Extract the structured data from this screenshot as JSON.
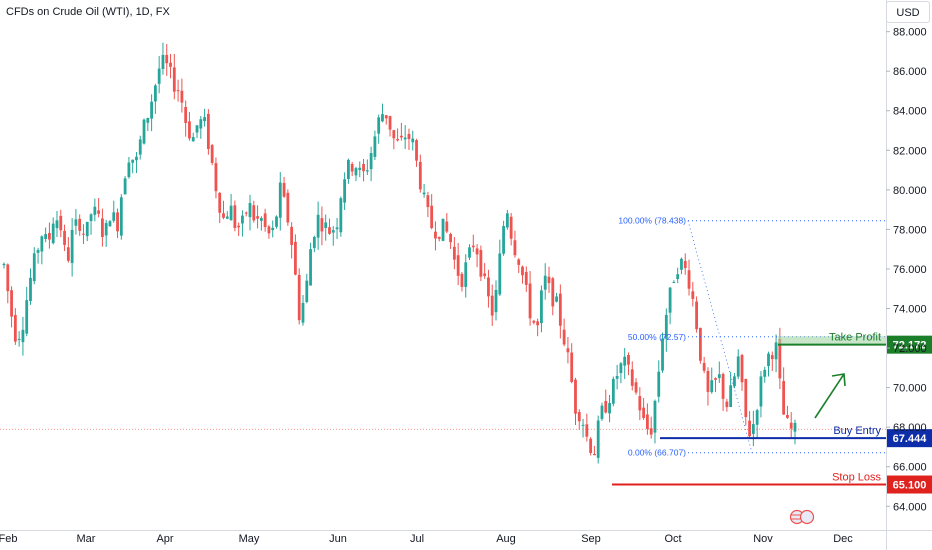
{
  "header": {
    "symbol_title": "CFDs on Crude Oil (WTI), 1D, FX",
    "currency": "USD"
  },
  "colors": {
    "up": "#26a69a",
    "down": "#ef5350",
    "take_profit": "#1b7f2a",
    "buy_entry": "#0d2ea8",
    "stop_loss": "#e0221f",
    "fib": "#2962ff",
    "grid": "#ffffff"
  },
  "chart_data": {
    "type": "candlestick",
    "ylim": [
      62.8,
      89.6
    ],
    "y_ticks": [
      "64.000",
      "66.000",
      "68.000",
      "70.000",
      "72.000",
      "74.000",
      "76.000",
      "78.000",
      "80.000",
      "82.000",
      "84.000",
      "86.000",
      "88.000"
    ],
    "x_ticks": [
      "Feb",
      "Mar",
      "Apr",
      "May",
      "Jun",
      "Jul",
      "Aug",
      "Sep",
      "Oct",
      "Nov",
      "Dec"
    ],
    "close_series": [
      [
        0,
        76.2
      ],
      [
        2,
        74.0
      ],
      [
        4,
        72.4
      ],
      [
        6,
        73.3
      ],
      [
        8,
        75.2
      ],
      [
        10,
        76.6
      ],
      [
        12,
        77.8
      ],
      [
        14,
        77.2
      ],
      [
        16,
        78.8
      ],
      [
        18,
        78.2
      ],
      [
        20,
        76.2
      ],
      [
        22,
        78.0
      ],
      [
        24,
        78.4
      ],
      [
        26,
        77.6
      ],
      [
        28,
        79.0
      ],
      [
        30,
        78.6
      ],
      [
        32,
        77.6
      ],
      [
        34,
        79.0
      ],
      [
        36,
        78.1
      ],
      [
        38,
        80.5
      ],
      [
        40,
        81.9
      ],
      [
        42,
        81.3
      ],
      [
        44,
        82.9
      ],
      [
        46,
        83.9
      ],
      [
        48,
        85.2
      ],
      [
        50,
        86.5
      ],
      [
        52,
        86.2
      ],
      [
        54,
        85.4
      ],
      [
        56,
        85.0
      ],
      [
        58,
        83.4
      ],
      [
        60,
        82.5
      ],
      [
        62,
        83.5
      ],
      [
        64,
        83.3
      ],
      [
        66,
        81.6
      ],
      [
        68,
        79.7
      ],
      [
        70,
        78.5
      ],
      [
        72,
        79.2
      ],
      [
        74,
        78.0
      ],
      [
        76,
        78.3
      ],
      [
        78,
        79.3
      ],
      [
        80,
        78.4
      ],
      [
        82,
        78.5
      ],
      [
        84,
        77.7
      ],
      [
        86,
        77.9
      ],
      [
        88,
        80.0
      ],
      [
        90,
        78.9
      ],
      [
        92,
        77.0
      ],
      [
        94,
        73.7
      ],
      [
        96,
        74.6
      ],
      [
        98,
        77.5
      ],
      [
        100,
        78.6
      ],
      [
        102,
        78.2
      ],
      [
        104,
        77.9
      ],
      [
        106,
        78.3
      ],
      [
        108,
        80.6
      ],
      [
        110,
        81.2
      ],
      [
        112,
        81.3
      ],
      [
        114,
        80.6
      ],
      [
        116,
        81.3
      ],
      [
        118,
        82.6
      ],
      [
        120,
        83.9
      ],
      [
        122,
        83.8
      ],
      [
        124,
        82.6
      ],
      [
        126,
        82.2
      ],
      [
        128,
        82.8
      ],
      [
        130,
        82.5
      ],
      [
        132,
        80.9
      ],
      [
        134,
        79.3
      ],
      [
        136,
        78.2
      ],
      [
        138,
        77.9
      ],
      [
        140,
        78.1
      ],
      [
        142,
        77.6
      ],
      [
        144,
        76.0
      ],
      [
        146,
        75.5
      ],
      [
        148,
        76.6
      ],
      [
        150,
        77.5
      ],
      [
        152,
        76.0
      ],
      [
        154,
        74.6
      ],
      [
        156,
        73.6
      ],
      [
        158,
        76.6
      ],
      [
        160,
        79.4
      ],
      [
        162,
        77.4
      ],
      [
        164,
        76.5
      ],
      [
        166,
        75.1
      ],
      [
        168,
        73.5
      ],
      [
        170,
        73.0
      ],
      [
        172,
        75.6
      ],
      [
        174,
        74.8
      ],
      [
        176,
        74.2
      ],
      [
        178,
        72.8
      ],
      [
        180,
        71.2
      ],
      [
        182,
        69.0
      ],
      [
        184,
        68.6
      ],
      [
        186,
        67.3
      ],
      [
        188,
        66.7
      ],
      [
        190,
        68.6
      ],
      [
        192,
        69.2
      ],
      [
        194,
        70.0
      ],
      [
        196,
        71.0
      ],
      [
        198,
        71.2
      ],
      [
        200,
        70.3
      ],
      [
        202,
        69.4
      ],
      [
        204,
        68.1
      ],
      [
        206,
        67.7
      ],
      [
        208,
        70.0
      ],
      [
        210,
        73.0
      ],
      [
        212,
        74.5
      ],
      [
        214,
        76.1
      ],
      [
        216,
        76.3
      ],
      [
        218,
        75.6
      ],
      [
        220,
        74.0
      ],
      [
        222,
        71.5
      ],
      [
        224,
        69.5
      ],
      [
        226,
        70.1
      ],
      [
        228,
        70.5
      ],
      [
        230,
        69.0
      ],
      [
        232,
        70.0
      ],
      [
        234,
        71.5
      ],
      [
        236,
        68.6
      ],
      [
        238,
        67.5
      ],
      [
        240,
        69.3
      ],
      [
        242,
        71.0
      ],
      [
        244,
        71.8
      ],
      [
        246,
        72.0
      ],
      [
        248,
        68.8
      ],
      [
        250,
        67.9
      ],
      [
        252,
        67.8
      ]
    ],
    "fibonacci": [
      {
        "label": "100.00% (78.438)",
        "value": 78.438
      },
      {
        "label": "50.00% (72.57)",
        "value": 72.57
      },
      {
        "label": "0.00% (66.707)",
        "value": 66.707
      }
    ],
    "levels": [
      {
        "name": "Take Profit",
        "value": 72.172,
        "price_label": "72.172"
      },
      {
        "name": "Buy Entry",
        "value": 67.444,
        "price_label": "67.444"
      },
      {
        "name": "Stop Loss",
        "value": 65.1,
        "price_label": "65.100"
      }
    ],
    "last_price": 67.9,
    "legend": "none",
    "grid": false
  }
}
